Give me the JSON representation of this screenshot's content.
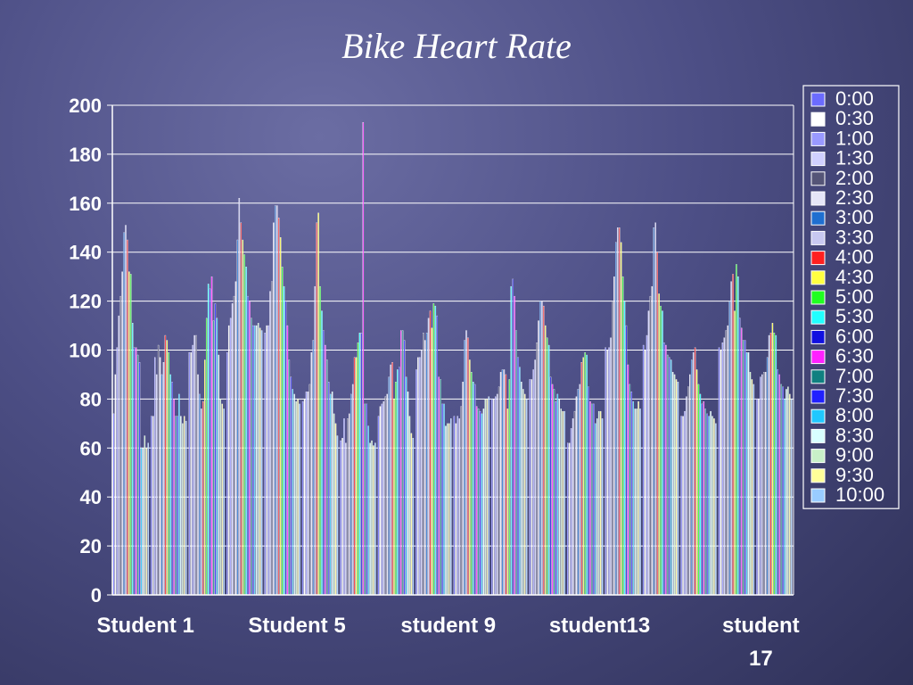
{
  "slide": {
    "title": "Bike Heart Rate"
  },
  "chart_data": {
    "type": "bar",
    "title": "Bike Heart Rate",
    "xlabel": "",
    "ylabel": "",
    "ylim": [
      0,
      200
    ],
    "yticks": [
      0,
      20,
      40,
      60,
      80,
      100,
      120,
      140,
      160,
      180,
      200
    ],
    "grid": true,
    "legend_position": "right",
    "categories": [
      "Student 1",
      "",
      "",
      "",
      "Student 5",
      "",
      "",
      "",
      "student 9",
      "",
      "",
      "",
      "student13",
      "",
      "",
      "",
      "student 17",
      ""
    ],
    "series": [
      {
        "name": "0:00",
        "color": "#6b6bff",
        "values": [
          74,
          73,
          99,
          99,
          107,
          79,
          63,
          73,
          92,
          73,
          80,
          88,
          62,
          101,
          102,
          73,
          101,
          80
        ]
      },
      {
        "name": "0:30",
        "color": "#ffffff",
        "values": [
          90,
          73,
          99,
          110,
          110,
          80,
          64,
          77,
          97,
          70,
          80,
          88,
          62,
          100,
          100,
          73,
          100,
          80
        ]
      },
      {
        "name": "1:00",
        "color": "#9999ff",
        "values": [
          101,
          97,
          102,
          113,
          110,
          83,
          72,
          78,
          97,
          73,
          81,
          92,
          68,
          101,
          106,
          75,
          103,
          89
        ]
      },
      {
        "name": "1:30",
        "color": "#d0d0ff",
        "values": [
          114,
          90,
          106,
          119,
          124,
          83,
          62,
          79,
          100,
          72,
          82,
          96,
          72,
          105,
          116,
          81,
          105,
          90
        ]
      },
      {
        "name": "2:00",
        "color": "#555577",
        "values": [
          122,
          102,
          106,
          122,
          128,
          86,
          72,
          81,
          107,
          77,
          85,
          103,
          75,
          120,
          122,
          85,
          108,
          91
        ]
      },
      {
        "name": "2:30",
        "color": "#e6e6f8",
        "values": [
          132,
          97,
          90,
          128,
          152,
          99,
          74,
          82,
          104,
          87,
          91,
          112,
          81,
          130,
          126,
          90,
          110,
          91
        ]
      },
      {
        "name": "3:00",
        "color": "#1f6fd0",
        "values": [
          148,
          90,
          82,
          145,
          159,
          104,
          82,
          89,
          107,
          104,
          92,
          120,
          84,
          144,
          150,
          96,
          120,
          97
        ]
      },
      {
        "name": "3:30",
        "color": "#c8c8f0",
        "values": [
          151,
          95,
          76,
          162,
          159,
          126,
          86,
          94,
          113,
          108,
          92,
          120,
          86,
          150,
          152,
          99,
          128,
          106
        ]
      },
      {
        "name": "4:00",
        "color": "#ff2020",
        "values": [
          145,
          106,
          79,
          152,
          154,
          152,
          97,
          95,
          116,
          105,
          90,
          118,
          95,
          150,
          140,
          101,
          131,
          107
        ]
      },
      {
        "name": "4:30",
        "color": "#ffff40",
        "values": [
          132,
          104,
          96,
          145,
          146,
          156,
          97,
          80,
          109,
          96,
          76,
          110,
          97,
          144,
          123,
          92,
          116,
          111
        ]
      },
      {
        "name": "5:00",
        "color": "#20ff20",
        "values": [
          131,
          99,
          113,
          139,
          134,
          126,
          103,
          87,
          119,
          91,
          88,
          105,
          99,
          130,
          118,
          86,
          135,
          107
        ]
      },
      {
        "name": "5:30",
        "color": "#20ffff",
        "values": [
          111,
          90,
          127,
          134,
          126,
          116,
          107,
          92,
          118,
          87,
          126,
          102,
          98,
          120,
          116,
          82,
          130,
          106
        ]
      },
      {
        "name": "6:00",
        "color": "#1010e0",
        "values": [
          101,
          87,
          125,
          122,
          120,
          108,
          107,
          93,
          114,
          86,
          129,
          89,
          85,
          110,
          103,
          78,
          113,
          92
        ]
      },
      {
        "name": "6:30",
        "color": "#ff20ff",
        "values": [
          101,
          80,
          130,
          120,
          110,
          102,
          193,
          108,
          89,
          77,
          122,
          86,
          79,
          94,
          102,
          79,
          109,
          90
        ]
      },
      {
        "name": "7:00",
        "color": "#108080",
        "values": [
          98,
          73,
          112,
          113,
          96,
          96,
          78,
          108,
          88,
          76,
          108,
          84,
          78,
          86,
          98,
          76,
          104,
          86
        ]
      },
      {
        "name": "7:30",
        "color": "#2020ff",
        "values": [
          95,
          73,
          119,
          110,
          89,
          87,
          78,
          104,
          78,
          75,
          97,
          79,
          78,
          83,
          97,
          74,
          104,
          85
        ]
      },
      {
        "name": "8:00",
        "color": "#20c8ff",
        "values": [
          60,
          82,
          113,
          110,
          84,
          82,
          69,
          89,
          78,
          74,
          93,
          82,
          70,
          79,
          96,
          73,
          99,
          80
        ]
      },
      {
        "name": "8:30",
        "color": "#d8ffff",
        "values": [
          60,
          73,
          98,
          110,
          82,
          83,
          62,
          83,
          69,
          76,
          87,
          80,
          72,
          76,
          91,
          75,
          99,
          84
        ]
      },
      {
        "name": "9:00",
        "color": "#c8f0c8",
        "values": [
          65,
          70,
          80,
          111,
          79,
          74,
          63,
          73,
          70,
          80,
          84,
          76,
          75,
          76,
          90,
          73,
          91,
          85
        ]
      },
      {
        "name": "9:30",
        "color": "#ffff99",
        "values": [
          60,
          73,
          78,
          109,
          80,
          70,
          61,
          66,
          70,
          80,
          82,
          75,
          75,
          79,
          88,
          72,
          88,
          82
        ]
      },
      {
        "name": "10:00",
        "color": "#99ccff",
        "values": [
          62,
          71,
          76,
          108,
          78,
          65,
          62,
          64,
          72,
          81,
          80,
          75,
          72,
          76,
          87,
          70,
          86,
          80
        ]
      }
    ]
  }
}
